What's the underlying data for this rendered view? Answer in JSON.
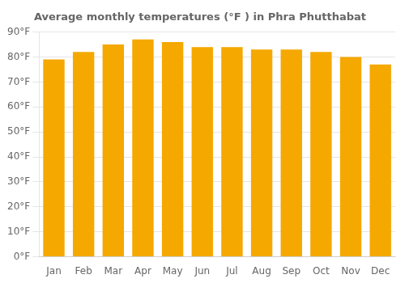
{
  "chart_data": {
    "type": "bar",
    "title": "Average monthly temperatures (°F ) in Phra Phutthabat",
    "categories": [
      "Jan",
      "Feb",
      "Mar",
      "Apr",
      "May",
      "Jun",
      "Jul",
      "Aug",
      "Sep",
      "Oct",
      "Nov",
      "Dec"
    ],
    "values": [
      79,
      82,
      85,
      87,
      86,
      84,
      84,
      83,
      83,
      82,
      80,
      77
    ],
    "color": "#F5A800",
    "ylim": [
      0,
      90
    ],
    "yticks": [
      {
        "value": 0,
        "label": "0°F"
      },
      {
        "value": 10,
        "label": "10°F"
      },
      {
        "value": 20,
        "label": "20°F"
      },
      {
        "value": 30,
        "label": "30°F"
      },
      {
        "value": 40,
        "label": "40°F"
      },
      {
        "value": 50,
        "label": "50°F"
      },
      {
        "value": 60,
        "label": "60°F"
      },
      {
        "value": 70,
        "label": "70°F"
      },
      {
        "value": 80,
        "label": "80°F"
      },
      {
        "value": 90,
        "label": "90°F"
      }
    ],
    "grid": true
  }
}
